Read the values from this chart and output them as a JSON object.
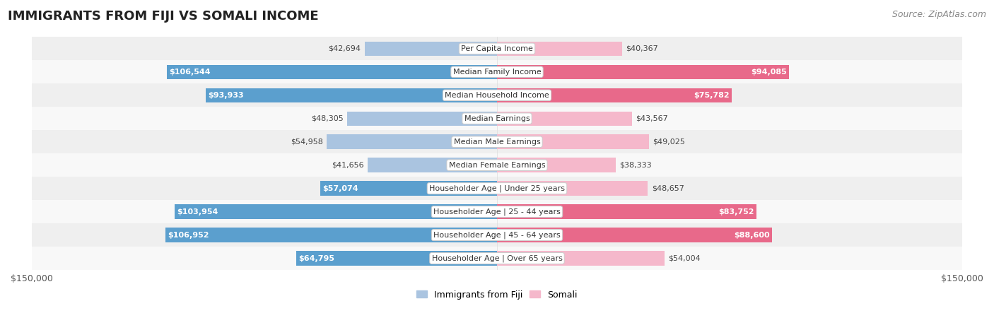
{
  "title": "IMMIGRANTS FROM FIJI VS SOMALI INCOME",
  "source": "Source: ZipAtlas.com",
  "categories": [
    "Per Capita Income",
    "Median Family Income",
    "Median Household Income",
    "Median Earnings",
    "Median Male Earnings",
    "Median Female Earnings",
    "Householder Age | Under 25 years",
    "Householder Age | 25 - 44 years",
    "Householder Age | 45 - 64 years",
    "Householder Age | Over 65 years"
  ],
  "fiji_values": [
    42694,
    106544,
    93933,
    48305,
    54958,
    41656,
    57074,
    103954,
    106952,
    64795
  ],
  "somali_values": [
    40367,
    94085,
    75782,
    43567,
    49025,
    38333,
    48657,
    83752,
    88600,
    54004
  ],
  "fiji_labels": [
    "$42,694",
    "$106,544",
    "$93,933",
    "$48,305",
    "$54,958",
    "$41,656",
    "$57,074",
    "$103,954",
    "$106,952",
    "$64,795"
  ],
  "somali_labels": [
    "$40,367",
    "$94,085",
    "$75,782",
    "$43,567",
    "$49,025",
    "$38,333",
    "$48,657",
    "$83,752",
    "$88,600",
    "$54,004"
  ],
  "fiji_color_light": "#aac4e0",
  "fiji_color_dark": "#5b9fce",
  "somali_color_light": "#f5b8cb",
  "somali_color_dark": "#e8698a",
  "max_value": 150000,
  "row_bg_odd": "#efefef",
  "row_bg_even": "#f8f8f8",
  "bar_height": 0.62,
  "label_color_inside": "#ffffff",
  "label_color_outside": "#444444",
  "title_fontsize": 13,
  "source_fontsize": 9,
  "label_fontsize": 8,
  "category_fontsize": 8,
  "axis_label_fontsize": 9,
  "inside_threshold": 55000
}
